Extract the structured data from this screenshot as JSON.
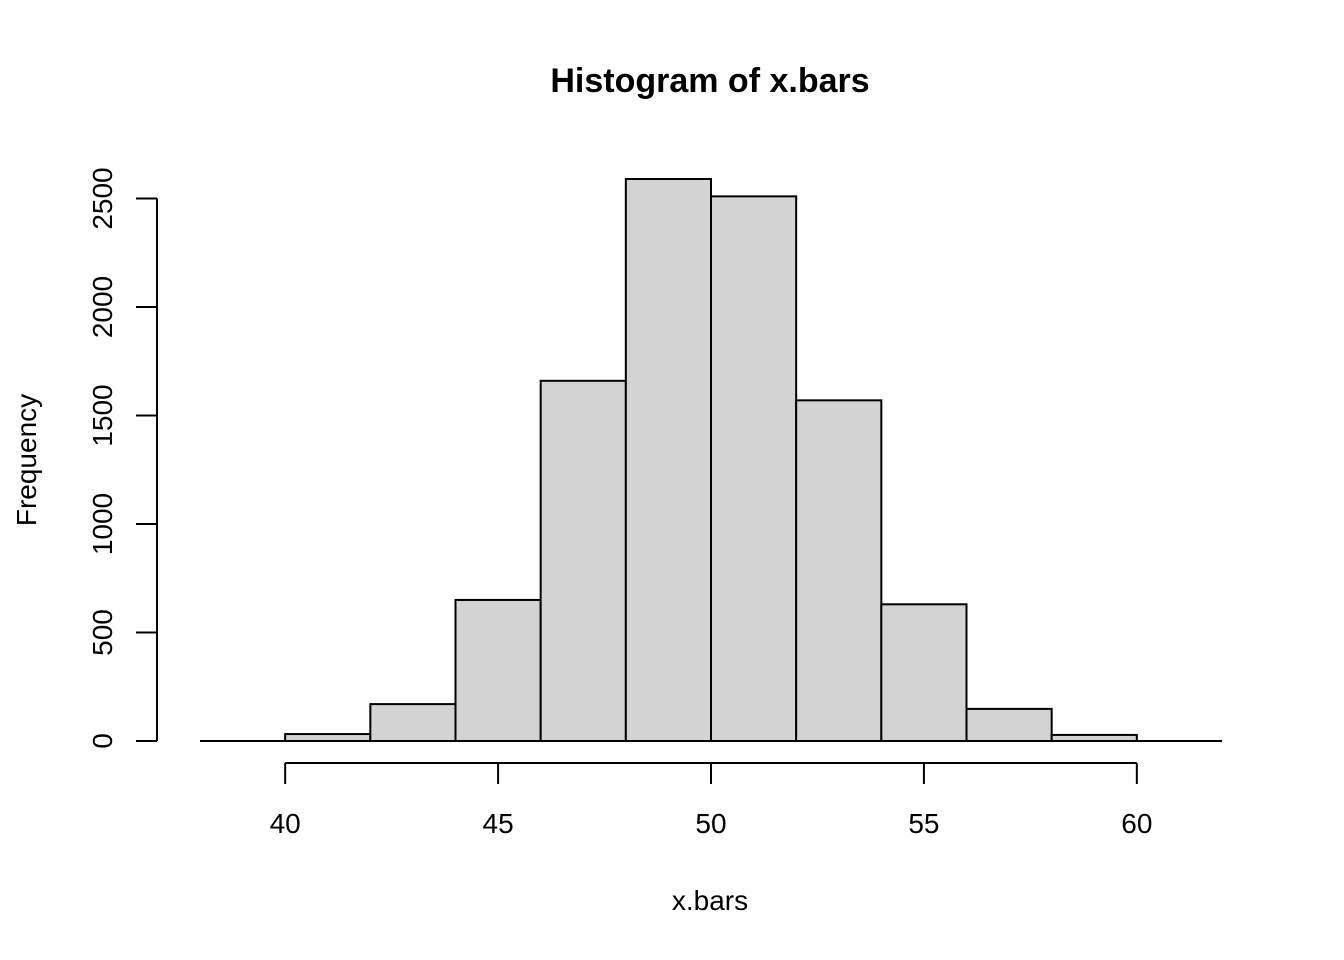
{
  "chart_data": {
    "type": "bar",
    "title": "Histogram of x.bars",
    "xlabel": "x.bars",
    "ylabel": "Frequency",
    "bin_edges": [
      40,
      42,
      44,
      46,
      48,
      50,
      52,
      54,
      56,
      58,
      60
    ],
    "values": [
      32,
      170,
      650,
      1660,
      2590,
      2510,
      1570,
      630,
      148,
      28
    ],
    "xlim": [
      38,
      62
    ],
    "ylim": [
      0,
      2590
    ],
    "x_ticks": [
      40,
      45,
      50,
      55,
      60
    ],
    "y_ticks": [
      0,
      500,
      1000,
      1500,
      2000,
      2500
    ],
    "grid": false,
    "colors": {
      "bar_fill": "#d3d3d3",
      "bar_stroke": "#000000"
    }
  }
}
